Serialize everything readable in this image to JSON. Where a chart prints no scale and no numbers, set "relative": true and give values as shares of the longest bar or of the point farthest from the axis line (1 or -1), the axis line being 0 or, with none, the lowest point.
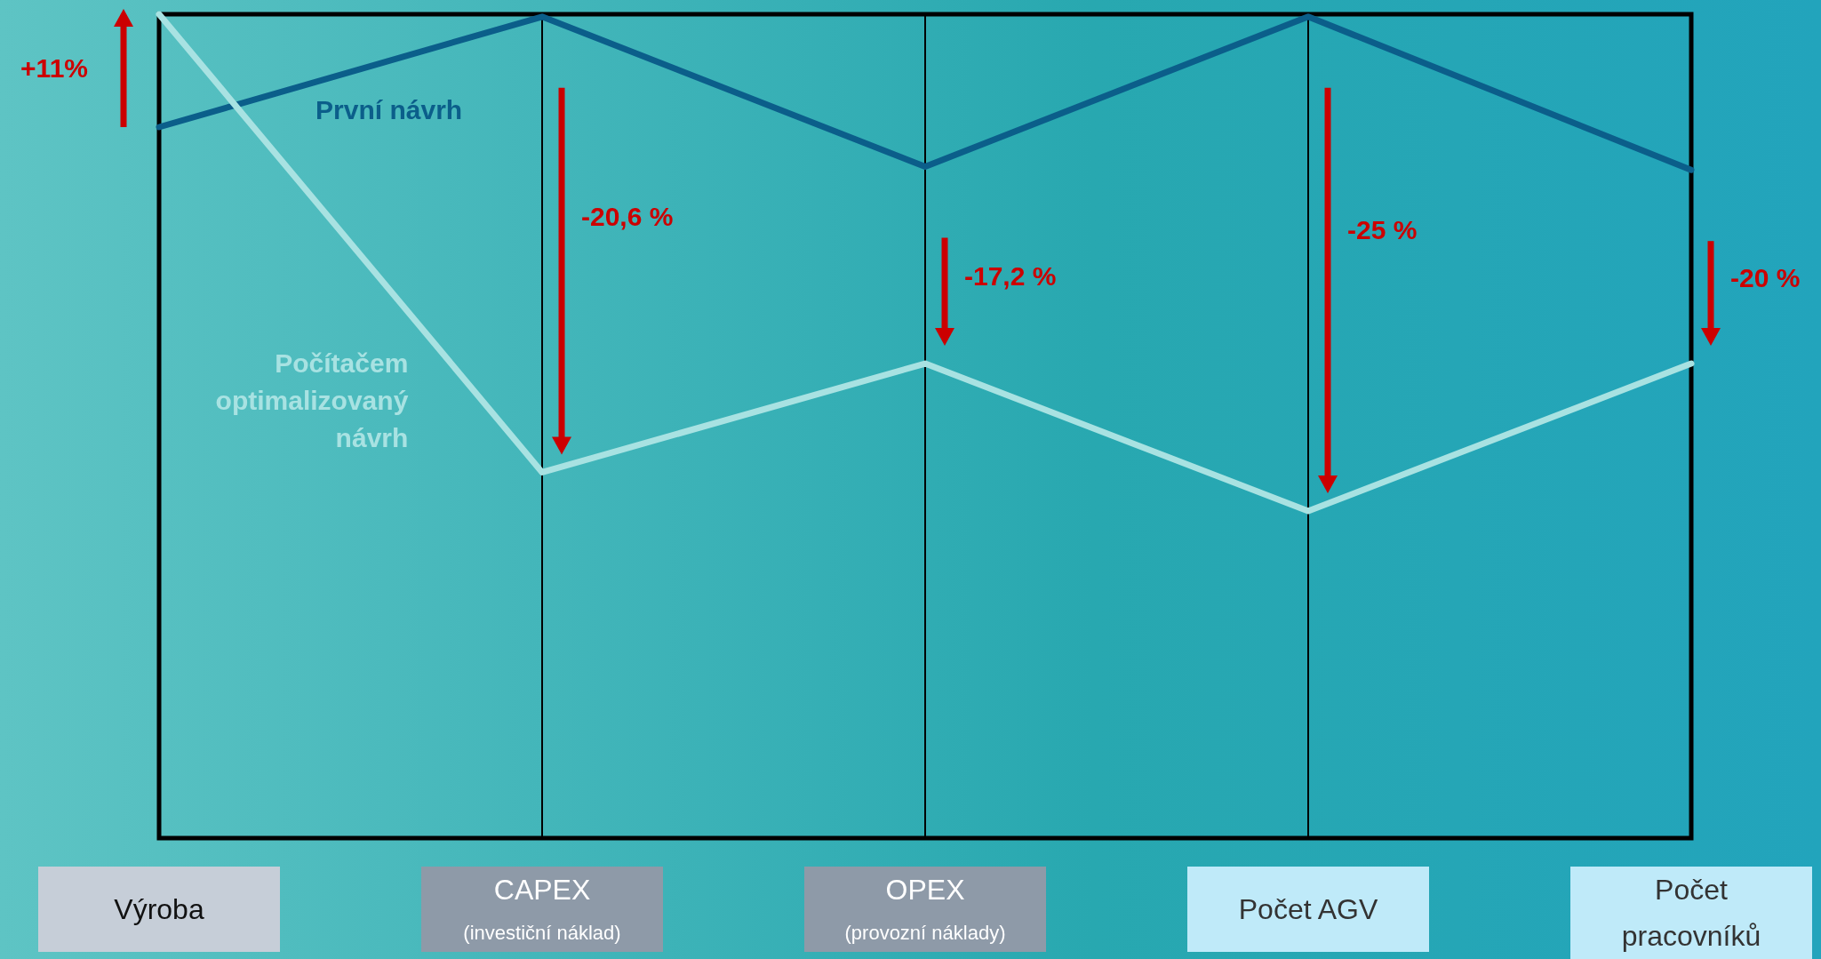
{
  "chart_data": {
    "type": "line",
    "relative": true,
    "categories": [
      "Výroba",
      "CAPEX\n(investiční náklad)",
      "OPEX\n(provozní náklady)",
      "Počet AGV",
      "Počet\npracovníků"
    ],
    "series": [
      {
        "name": "První návrh",
        "color": "#0b5e8a",
        "values": [
          0.863,
          0.997,
          0.815,
          0.997,
          0.811
        ]
      },
      {
        "name": "Počítačem\noptimalizovaný\nnávrh",
        "color": "#a8e2e2",
        "values": [
          1,
          0.444,
          0.576,
          0.397,
          0.576
        ]
      }
    ],
    "annotations": [
      "+11%",
      "-20,6 %",
      "-17,2 %",
      "-25 %",
      "-20 %"
    ],
    "grid": "x",
    "tick_labels": "x",
    "line_style": "solid"
  }
}
